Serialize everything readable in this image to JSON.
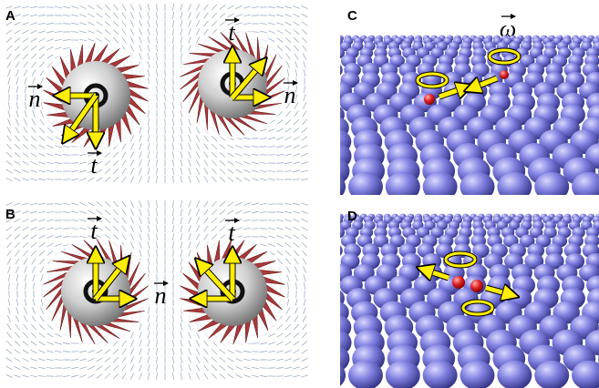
{
  "panels": [
    {
      "label": "A",
      "vector_labels": [
        "n",
        "t",
        "t",
        "n"
      ]
    },
    {
      "label": "B",
      "vector_labels": [
        "t",
        "t",
        "n"
      ]
    },
    {
      "label": "C",
      "vector_labels": [
        "ω"
      ]
    },
    {
      "label": "D",
      "vector_labels": []
    }
  ]
}
